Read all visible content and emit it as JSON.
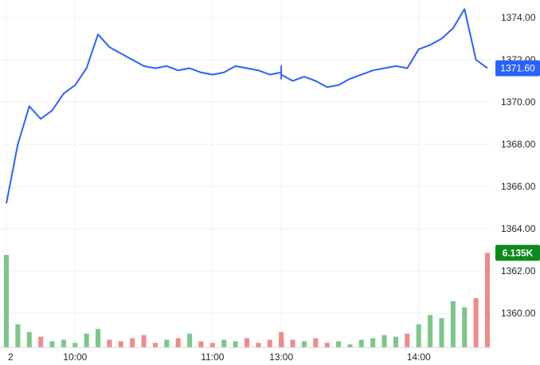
{
  "chart_data": {
    "type": "line",
    "price": {
      "name": "",
      "color": "#2962ff",
      "x": [
        "09:30",
        "09:35",
        "09:40",
        "09:45",
        "09:50",
        "09:55",
        "10:00",
        "10:05",
        "10:10",
        "10:15",
        "10:20",
        "10:25",
        "10:30",
        "10:35",
        "10:40",
        "10:45",
        "10:50",
        "10:55",
        "11:00",
        "11:05",
        "11:10",
        "11:15",
        "11:20",
        "11:25",
        "11:30",
        "11:35",
        "11:40",
        "11:45",
        "11:50",
        "11:55",
        "12:00",
        "12:05",
        "12:10",
        "12:15",
        "12:20",
        "12:25",
        "12:30",
        "12:35",
        "12:40",
        "12:45",
        "12:50",
        "12:55",
        "13:00",
        "13:05",
        "13:10",
        "13:15",
        "13:20",
        "13:25",
        "13:30",
        "13:35",
        "13:40",
        "13:45",
        "13:50",
        "13:55",
        "14:00",
        "14:05",
        "14:10",
        "14:15",
        "14:20",
        "14:25",
        "14:30"
      ],
      "values": [
        1365.2,
        1368.0,
        1369.8,
        1369.2,
        1369.6,
        1370.4,
        1370.8,
        1371.6,
        1373.2,
        1372.6,
        1372.3,
        1372.0,
        1371.7,
        1371.6,
        1371.7,
        1371.5,
        1371.6,
        1371.4,
        1371.3,
        1371.4,
        1371.7,
        1371.6,
        1371.5,
        1371.3,
        1371.4,
        1371.6,
        1371.5,
        1371.6,
        1371.3,
        1371.1,
        1371.2,
        1371.3,
        1371.4,
        1371.6,
        1371.5,
        1371.4,
        1371.5,
        1371.6,
        1371.7,
        1371.6,
        1371.5,
        1371.4,
        1371.3,
        1371.0,
        1371.2,
        1371.0,
        1370.7,
        1370.8,
        1371.1,
        1371.3,
        1371.5,
        1371.6,
        1371.7,
        1371.6,
        1372.5,
        1372.7,
        1373.0,
        1373.5,
        1374.4,
        1372.0,
        1371.6
      ],
      "last_label": "1371.60"
    },
    "volume": {
      "name": "",
      "last_label": "6.135K",
      "up_color": "#7cc68a",
      "down_color": "#f08a8a",
      "label_color": "#0e8a1d",
      "values": [
        6.0,
        1.5,
        1.0,
        0.7,
        0.4,
        0.5,
        0.3,
        0.9,
        1.2,
        0.5,
        0.4,
        0.6,
        0.8,
        0.3,
        0.5,
        0.6,
        0.9,
        0.4,
        0.3,
        0.5,
        0.4,
        0.6,
        0.3,
        0.5,
        0.2,
        0.3,
        0.4,
        0.6,
        0.3,
        0.2,
        0.4,
        0.5,
        0.3,
        0.3,
        0.2,
        0.4,
        0.3,
        0.4,
        0.3,
        0.5,
        0.3,
        0.4,
        1.0,
        0.5,
        0.4,
        0.6,
        0.3,
        0.4,
        0.2,
        0.5,
        0.6,
        0.8,
        0.7,
        0.9,
        1.5,
        2.1,
        1.9,
        3.0,
        2.6,
        3.2,
        6.135
      ]
    },
    "y_ticks": [
      "1374.00",
      "1372.00",
      "1370.00",
      "1368.00",
      "1366.00",
      "1364.00",
      "1362.00",
      "1360.00"
    ],
    "y_tick_values": [
      1374,
      1372,
      1370,
      1368,
      1366,
      1364,
      1362,
      1360
    ],
    "x_ticks": [
      "2",
      "10:00",
      "11:00",
      "13:00",
      "14:00"
    ],
    "x_tick_positions": [
      "09:30",
      "10:00",
      "11:00",
      "13:00",
      "14:00"
    ],
    "grid": true
  }
}
